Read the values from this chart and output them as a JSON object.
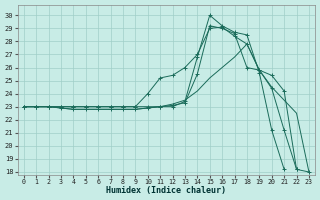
{
  "xlabel": "Humidex (Indice chaleur)",
  "xlim": [
    -0.5,
    23.5
  ],
  "ylim": [
    17.8,
    30.8
  ],
  "yticks": [
    18,
    19,
    20,
    21,
    22,
    23,
    24,
    25,
    26,
    27,
    28,
    29,
    30
  ],
  "xticks": [
    0,
    1,
    2,
    3,
    4,
    5,
    6,
    7,
    8,
    9,
    10,
    11,
    12,
    13,
    14,
    15,
    16,
    17,
    18,
    19,
    20,
    21,
    22,
    23
  ],
  "bg_color": "#c8ece6",
  "grid_color": "#a0cfc8",
  "line_color": "#1a6b5a",
  "lines": [
    {
      "x": [
        0,
        1,
        2,
        3,
        4,
        5,
        6,
        7,
        8,
        9,
        10,
        11,
        12,
        13,
        14,
        15,
        16,
        17,
        18,
        19,
        20,
        21,
        22
      ],
      "y": [
        23,
        23,
        23,
        23,
        23,
        23,
        23,
        23,
        23,
        23,
        24.0,
        25.2,
        25.4,
        26.0,
        27.0,
        29.0,
        29.1,
        28.4,
        27.8,
        25.8,
        24.4,
        21.2,
        18.2
      ],
      "marker": true
    },
    {
      "x": [
        0,
        1,
        2,
        3,
        4,
        5,
        6,
        7,
        8,
        9,
        10,
        11,
        12,
        13,
        14,
        15,
        16,
        17,
        18,
        19,
        20,
        21
      ],
      "y": [
        23,
        23,
        23,
        23,
        23,
        23,
        23,
        23,
        23,
        23,
        23,
        23,
        23,
        23.4,
        26.8,
        30.0,
        29.2,
        28.7,
        28.5,
        25.6,
        21.2,
        18.2
      ],
      "marker": true
    },
    {
      "x": [
        0,
        1,
        2,
        3,
        4,
        5,
        6,
        7,
        8,
        9,
        10,
        11,
        12,
        13,
        14,
        15,
        16,
        17,
        18,
        19,
        20,
        21,
        22,
        23
      ],
      "y": [
        23,
        23,
        23,
        22.9,
        22.8,
        22.8,
        22.8,
        22.8,
        22.8,
        22.8,
        22.9,
        23.0,
        23.2,
        23.5,
        24.2,
        25.2,
        26.0,
        26.8,
        27.8,
        25.8,
        24.5,
        23.5,
        22.5,
        18.0
      ],
      "marker": false
    },
    {
      "x": [
        0,
        1,
        2,
        3,
        4,
        5,
        6,
        7,
        8,
        9,
        10,
        11,
        12,
        13,
        14,
        15,
        16,
        17,
        18,
        19,
        20,
        21,
        22,
        23
      ],
      "y": [
        23,
        23,
        23,
        22.9,
        22.8,
        22.8,
        22.8,
        22.8,
        22.8,
        22.8,
        22.9,
        23.0,
        23.1,
        23.3,
        25.5,
        29.2,
        29.0,
        28.6,
        26.0,
        25.8,
        25.4,
        24.2,
        18.2,
        18.0
      ],
      "marker": true
    }
  ]
}
